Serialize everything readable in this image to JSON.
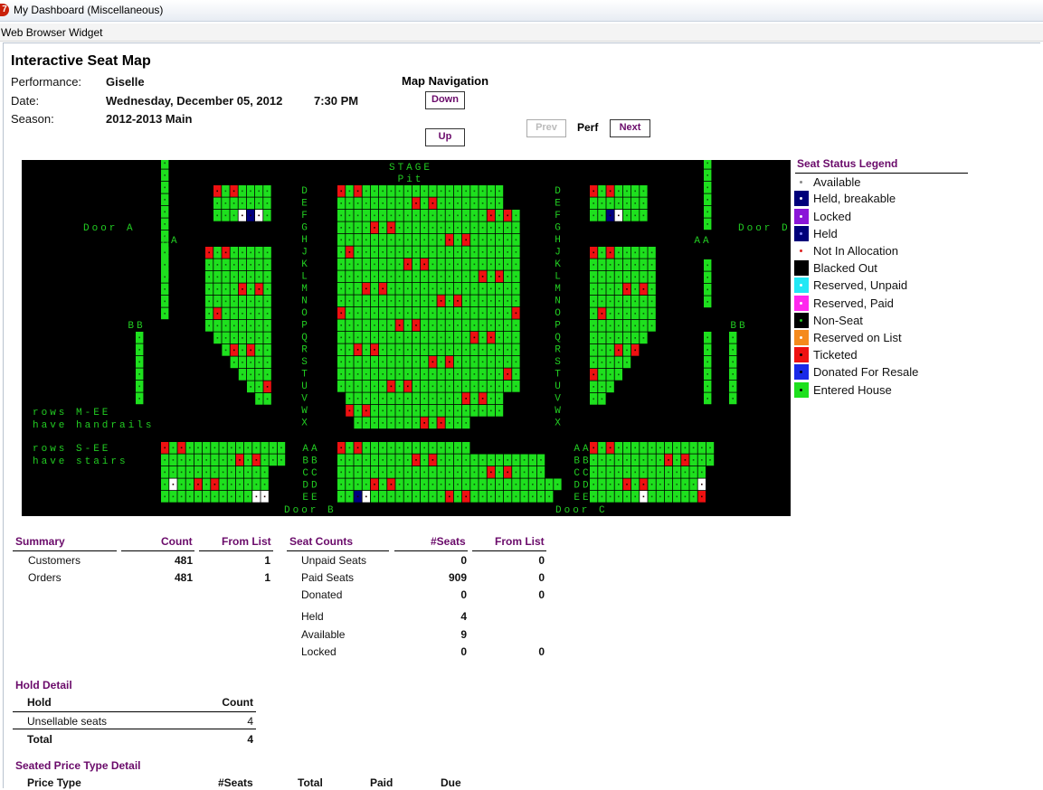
{
  "window": {
    "title": "My Dashboard (Miscellaneous)",
    "widget": "Web Browser Widget",
    "icon": "7"
  },
  "page": {
    "title": "Interactive Seat Map"
  },
  "performance": {
    "performance_label": "Performance:",
    "performance_value": "Giselle",
    "date_label": "Date:",
    "date_value": "Wednesday, December 05, 2012",
    "time_value": "7:30 PM",
    "season_label": "Season:",
    "season_value": "2012-2013 Main"
  },
  "navigation": {
    "title": "Map Navigation",
    "down": "Down",
    "up": "Up",
    "prev": "Prev",
    "perf": "Perf",
    "next": "Next"
  },
  "seatmap": {
    "stage": "STAGE",
    "pit": "Pit",
    "door_a": "Door A",
    "door_b": "Door B",
    "door_c": "Door C",
    "door_d": "Door D",
    "note1a": "rows M-EE",
    "note1b": "have handrails",
    "note2a": "rows S-EE",
    "note2b": "have stairs",
    "row_letters": [
      "D",
      "E",
      "F",
      "G",
      "H",
      "J",
      "K",
      "L",
      "M",
      "N",
      "O",
      "P",
      "Q",
      "R",
      "S",
      "T",
      "U",
      "V",
      "W",
      "X"
    ],
    "lower_rows": [
      "AA",
      "BB",
      "CC",
      "DD",
      "EE"
    ],
    "box_labels": [
      "AA",
      "AA",
      "BB",
      "BB"
    ],
    "colors": {
      "background": "#000000",
      "entered": "#1ee01e",
      "ticketed": "#ee1111",
      "held": "#000080",
      "available_white": "#ffffff",
      "label": "#22cc22"
    }
  },
  "legend": {
    "title": "Seat Status Legend",
    "items": [
      {
        "label": "Available",
        "color": "#ffffff",
        "dot": "#888888"
      },
      {
        "label": "Held, breakable",
        "color": "#00007a",
        "dot": "#ffffff"
      },
      {
        "label": "Locked",
        "color": "#8a16d8",
        "dot": "#ffffff"
      },
      {
        "label": "Held",
        "color": "#00007a",
        "dot": "#8888ff"
      },
      {
        "label": "Not In Allocation",
        "color": "#ffffff",
        "dot": "#dd2222"
      },
      {
        "label": "Blacked Out",
        "color": "#000000",
        "dot": "#000000"
      },
      {
        "label": "Reserved, Unpaid",
        "color": "#22e8f5",
        "dot": "#ffffff"
      },
      {
        "label": "Reserved, Paid",
        "color": "#ff28ee",
        "dot": "#ffffff"
      },
      {
        "label": "Non-Seat",
        "color": "#000000",
        "dot": "#22cc22"
      },
      {
        "label": "Reserved on List",
        "color": "#f58a1c",
        "dot": "#ffffff"
      },
      {
        "label": "Ticketed",
        "color": "#ee1111",
        "dot": "#000000"
      },
      {
        "label": "Donated For Resale",
        "color": "#1a2ae8",
        "dot": "#000000"
      },
      {
        "label": "Entered House",
        "color": "#1ee01e",
        "dot": "#000000"
      }
    ]
  },
  "summary": {
    "headers": [
      "Summary",
      "Count",
      "From List"
    ],
    "rows": [
      {
        "label": "Customers",
        "count": "481",
        "from_list": "1"
      },
      {
        "label": "Orders",
        "count": "481",
        "from_list": "1"
      }
    ]
  },
  "seat_counts": {
    "headers": [
      "Seat Counts",
      "#Seats",
      "From List"
    ],
    "rows": [
      {
        "label": "Unpaid Seats",
        "seats": "0",
        "from_list": "0"
      },
      {
        "label": "Paid Seats",
        "seats": "909",
        "from_list": "0"
      },
      {
        "label": "Donated",
        "seats": "0",
        "from_list": "0"
      },
      {
        "label": "Held",
        "seats": "4",
        "from_list": ""
      },
      {
        "label": "Available",
        "seats": "9",
        "from_list": ""
      },
      {
        "label": "Locked",
        "seats": "0",
        "from_list": "0"
      }
    ]
  },
  "hold_detail": {
    "title": "Hold Detail",
    "headers": [
      "Hold",
      "Count"
    ],
    "rows": [
      {
        "label": "Unsellable seats",
        "count": "4"
      }
    ],
    "total_label": "Total",
    "total_count": "4"
  },
  "price_detail": {
    "title": "Seated Price Type Detail",
    "headers": [
      "Price Type",
      "#Seats",
      "Total",
      "Paid",
      "Due"
    ]
  }
}
